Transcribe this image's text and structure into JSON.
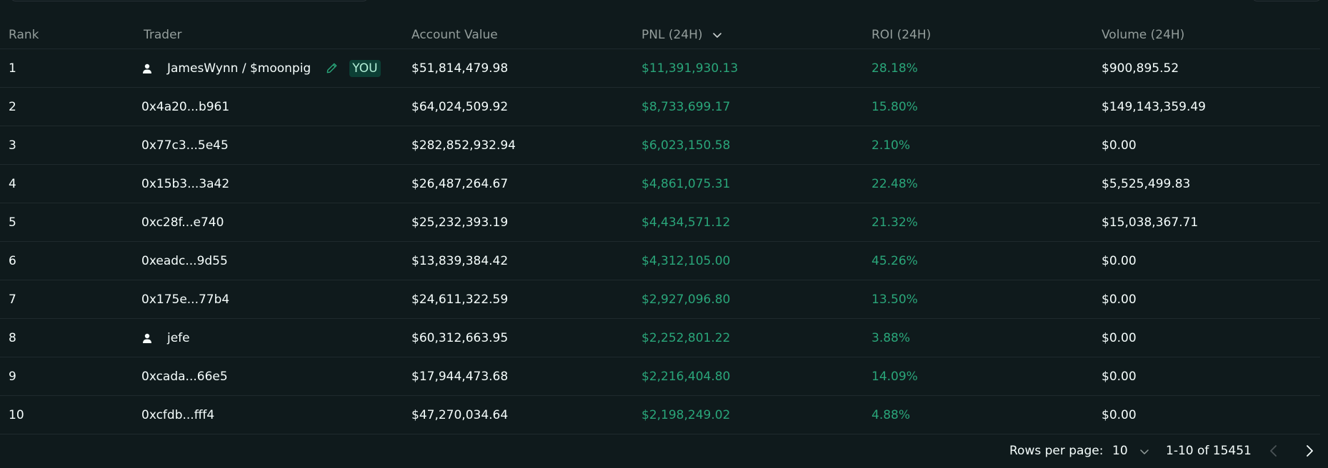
{
  "table": {
    "headers": {
      "rank": "Rank",
      "trader": "Trader",
      "account_value": "Account Value",
      "pnl": "PNL (24H)",
      "roi": "ROI (24H)",
      "volume": "Volume (24H)"
    },
    "sorted_column": "pnl",
    "rows": [
      {
        "rank": "1",
        "trader": "JamesWynn / $moonpig",
        "has_user_icon": true,
        "is_you": true,
        "you_label": "YOU",
        "account_value": "$51,814,479.98",
        "pnl": "$11,391,930.13",
        "roi": "28.18%",
        "volume": "$900,895.52"
      },
      {
        "rank": "2",
        "trader": "0x4a20...b961",
        "has_user_icon": false,
        "is_you": false,
        "account_value": "$64,024,509.92",
        "pnl": "$8,733,699.17",
        "roi": "15.80%",
        "volume": "$149,143,359.49"
      },
      {
        "rank": "3",
        "trader": "0x77c3...5e45",
        "has_user_icon": false,
        "is_you": false,
        "account_value": "$282,852,932.94",
        "pnl": "$6,023,150.58",
        "roi": "2.10%",
        "volume": "$0.00"
      },
      {
        "rank": "4",
        "trader": "0x15b3...3a42",
        "has_user_icon": false,
        "is_you": false,
        "account_value": "$26,487,264.67",
        "pnl": "$4,861,075.31",
        "roi": "22.48%",
        "volume": "$5,525,499.83"
      },
      {
        "rank": "5",
        "trader": "0xc28f...e740",
        "has_user_icon": false,
        "is_you": false,
        "account_value": "$25,232,393.19",
        "pnl": "$4,434,571.12",
        "roi": "21.32%",
        "volume": "$15,038,367.71"
      },
      {
        "rank": "6",
        "trader": "0xeadc...9d55",
        "has_user_icon": false,
        "is_you": false,
        "account_value": "$13,839,384.42",
        "pnl": "$4,312,105.00",
        "roi": "45.26%",
        "volume": "$0.00"
      },
      {
        "rank": "7",
        "trader": "0x175e...77b4",
        "has_user_icon": false,
        "is_you": false,
        "account_value": "$24,611,322.59",
        "pnl": "$2,927,096.80",
        "roi": "13.50%",
        "volume": "$0.00"
      },
      {
        "rank": "8",
        "trader": "jefe",
        "has_user_icon": true,
        "is_you": false,
        "account_value": "$60,312,663.95",
        "pnl": "$2,252,801.22",
        "roi": "3.88%",
        "volume": "$0.00"
      },
      {
        "rank": "9",
        "trader": "0xcada...66e5",
        "has_user_icon": false,
        "is_you": false,
        "account_value": "$17,944,473.68",
        "pnl": "$2,216,404.80",
        "roi": "14.09%",
        "volume": "$0.00"
      },
      {
        "rank": "10",
        "trader": "0xcfdb...fff4",
        "has_user_icon": false,
        "is_you": false,
        "account_value": "$47,270,034.64",
        "pnl": "$2,198,249.02",
        "roi": "4.88%",
        "volume": "$0.00"
      }
    ]
  },
  "pagination": {
    "rows_per_page_label": "Rows per page:",
    "rows_per_page_value": "10",
    "range_text": "1-10 of 15451"
  },
  "colors": {
    "background": "#0f1a1c",
    "text": "#f6fefd",
    "muted": "#949e9c",
    "positive": "#2aa67a",
    "you_badge_bg": "#0c3f35"
  },
  "icons": {
    "user": "user-icon",
    "edit": "pencil-icon",
    "sort": "chevron-down-icon",
    "prev": "chevron-left-icon",
    "next": "chevron-right-icon"
  }
}
